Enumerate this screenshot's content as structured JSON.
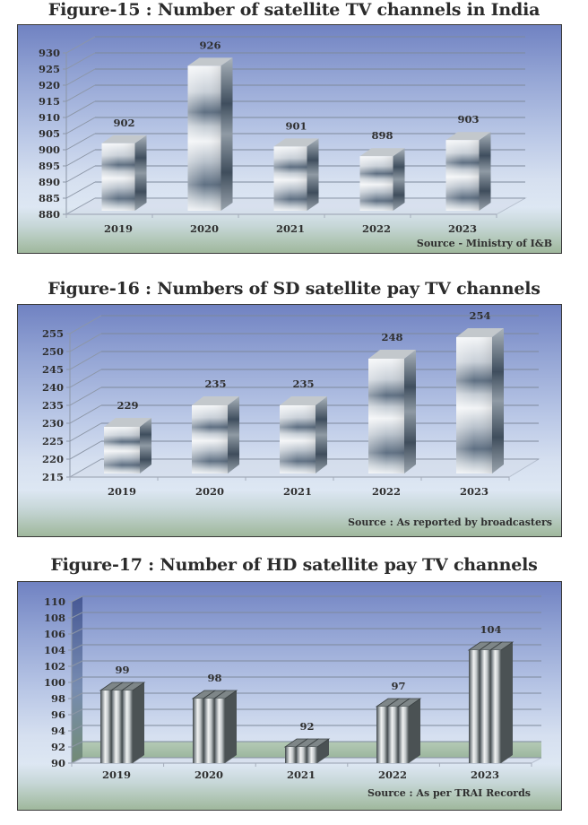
{
  "chart_data": [
    {
      "type": "bar",
      "title": "Figure-15 :  Number of satellite TV channels in India",
      "categories": [
        "2019",
        "2020",
        "2021",
        "2022",
        "2023"
      ],
      "values": [
        902,
        926,
        901,
        898,
        903
      ],
      "value_labels": [
        "902",
        "926",
        "901",
        "898",
        "903"
      ],
      "ylim": [
        880,
        930
      ],
      "yticks": [
        "880",
        "885",
        "890",
        "895",
        "900",
        "905",
        "910",
        "915",
        "920",
        "925",
        "930"
      ],
      "xlabel": "",
      "ylabel": "",
      "grid": true,
      "style": "3d-silver",
      "source": "Source - Ministry of I&B"
    },
    {
      "type": "bar",
      "title": "Figure-16 :  Numbers of SD satellite pay TV channels",
      "categories": [
        "2019",
        "2020",
        "2021",
        "2022",
        "2023"
      ],
      "values": [
        229,
        235,
        235,
        248,
        254
      ],
      "value_labels": [
        "229",
        "235",
        "235",
        "248",
        "254"
      ],
      "ylim": [
        215,
        255
      ],
      "yticks": [
        "215",
        "220",
        "225",
        "230",
        "235",
        "240",
        "245",
        "250",
        "255"
      ],
      "xlabel": "",
      "ylabel": "",
      "grid": true,
      "style": "3d-silver",
      "source": "Source : As reported by broadcasters"
    },
    {
      "type": "bar",
      "title": "Figure-17 : Number of HD satellite pay TV channels",
      "categories": [
        "2019",
        "2020",
        "2021",
        "2022",
        "2023"
      ],
      "values": [
        99,
        98,
        92,
        97,
        104
      ],
      "value_labels": [
        "99",
        "98",
        "92",
        "97",
        "104"
      ],
      "ylim": [
        90,
        110
      ],
      "yticks": [
        "90",
        "92",
        "94",
        "96",
        "98",
        "100",
        "102",
        "104",
        "106",
        "108",
        "110"
      ],
      "xlabel": "",
      "ylabel": "",
      "grid": true,
      "style": "3d-cylinder-cluster",
      "source": "Source : As per TRAI Records"
    }
  ],
  "colors": {
    "bg_top": "#7082c2",
    "bg_bottom": "#9fb89c",
    "grid": "#8a94a8",
    "text": "#2f2f2f"
  }
}
